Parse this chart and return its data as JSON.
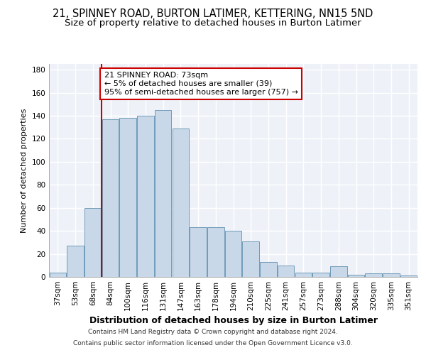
{
  "title": "21, SPINNEY ROAD, BURTON LATIMER, KETTERING, NN15 5ND",
  "subtitle": "Size of property relative to detached houses in Burton Latimer",
  "xlabel": "Distribution of detached houses by size in Burton Latimer",
  "ylabel": "Number of detached properties",
  "categories": [
    "37sqm",
    "53sqm",
    "68sqm",
    "84sqm",
    "100sqm",
    "116sqm",
    "131sqm",
    "147sqm",
    "163sqm",
    "178sqm",
    "194sqm",
    "210sqm",
    "225sqm",
    "241sqm",
    "257sqm",
    "273sqm",
    "288sqm",
    "304sqm",
    "320sqm",
    "335sqm",
    "351sqm"
  ],
  "values": [
    4,
    27,
    60,
    137,
    138,
    140,
    145,
    129,
    43,
    43,
    40,
    31,
    13,
    10,
    4,
    4,
    9,
    2,
    3,
    3,
    1
  ],
  "bar_color": "#c8d8e8",
  "bar_edge_color": "#6090b0",
  "vline_x": 2.5,
  "vline_color": "#cc0000",
  "annotation_text": "21 SPINNEY ROAD: 73sqm\n← 5% of detached houses are smaller (39)\n95% of semi-detached houses are larger (757) →",
  "annotation_box_color": "#ffffff",
  "annotation_box_edge_color": "#cc0000",
  "ylim": [
    0,
    185
  ],
  "yticks": [
    0,
    20,
    40,
    60,
    80,
    100,
    120,
    140,
    160,
    180
  ],
  "footer_line1": "Contains HM Land Registry data © Crown copyright and database right 2024.",
  "footer_line2": "Contains public sector information licensed under the Open Government Licence v3.0.",
  "background_color": "#eef2f8",
  "grid_color": "#ffffff",
  "title_fontsize": 10.5,
  "subtitle_fontsize": 9.5,
  "xlabel_fontsize": 9,
  "ylabel_fontsize": 8,
  "tick_fontsize": 7.5,
  "annotation_fontsize": 8,
  "footer_fontsize": 6.5
}
